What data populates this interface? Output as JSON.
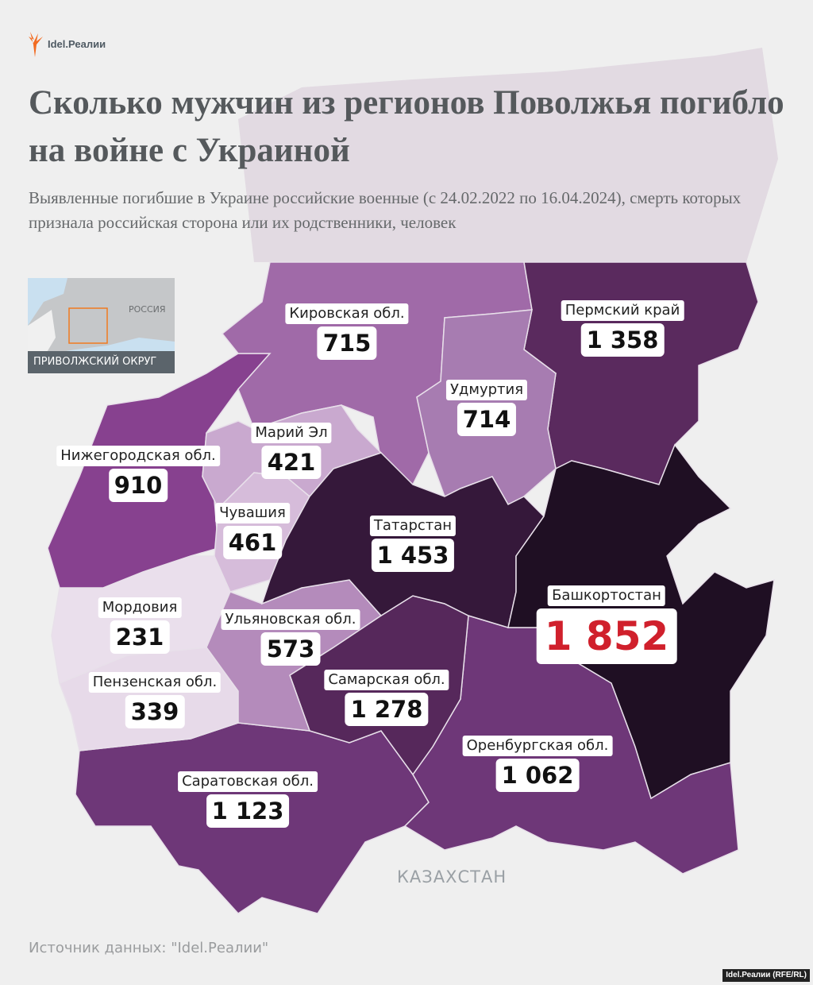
{
  "brand": {
    "logo_text": "Idel.Реалии",
    "accent": "#f26b21"
  },
  "title": "Сколько мужчин из регионов Поволжья погибло на войне с Украиной",
  "subtitle": "Выявленные погибшие в Украине российские военные (с 24.02.2022 по 16.04.2024), смерть которых признала российская сторона или их родственники, человек",
  "inset": {
    "country_label": "РОССИЯ",
    "district_label": "ПРИВОЛЖСКИЙ ОКРУГ"
  },
  "regions": [
    {
      "name": "Кировская обл.",
      "value": "715",
      "color": "#a06aa8"
    },
    {
      "name": "Пермский край",
      "value": "1 358",
      "color": "#5a2a5e"
    },
    {
      "name": "Удмуртия",
      "value": "714",
      "color": "#a77cb1"
    },
    {
      "name": "Марий Эл",
      "value": "421",
      "color": "#c9a9cf"
    },
    {
      "name": "Нижегородская обл.",
      "value": "910",
      "color": "#87418f"
    },
    {
      "name": "Чувашия",
      "value": "461",
      "color": "#d6bcda"
    },
    {
      "name": "Татарстан",
      "value": "1 453",
      "color": "#35183a"
    },
    {
      "name": "Башкортостан",
      "value": "1 852",
      "color": "#1f0f23"
    },
    {
      "name": "Мордовия",
      "value": "231",
      "color": "#eadfec"
    },
    {
      "name": "Ульяновская обл.",
      "value": "573",
      "color": "#b48bbb"
    },
    {
      "name": "Пензенская обл.",
      "value": "339",
      "color": "#e7dae9"
    },
    {
      "name": "Самарская обл.",
      "value": "1 278",
      "color": "#56285b"
    },
    {
      "name": "Оренбургская обл.",
      "value": "1 062",
      "color": "#6e3778"
    },
    {
      "name": "Саратовская обл.",
      "value": "1 123",
      "color": "#6e3778"
    }
  ],
  "highlight_color": "#d0202c",
  "neighbor_label": "КАЗАХСТАН",
  "source": "Источник данных: \"Idel.Реалии\"",
  "credit": "Idel.Реалии (RFE/RL)"
}
